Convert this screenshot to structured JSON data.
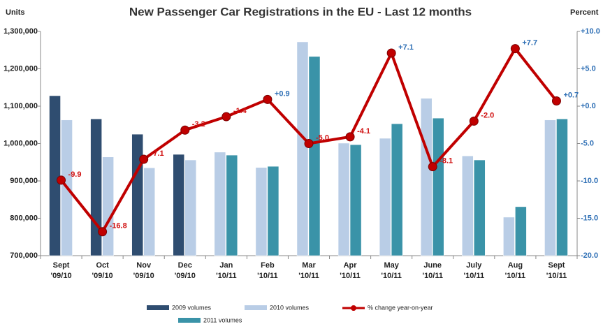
{
  "chart_data": {
    "type": "bar-line",
    "title": "New Passenger Car Registrations in the EU - Last 12 months",
    "y_label": "Units",
    "y2_label": "Percent",
    "categories": [
      "Sept '09/10",
      "Oct '09/10",
      "Nov '09/10",
      "Dec '09/10",
      "Jan '10/11",
      "Feb '10/11",
      "Mar '10/11",
      "Apr '10/11",
      "May '10/11",
      "June '10/11",
      "July '10/11",
      "Aug '10/11",
      "Sept '10/11"
    ],
    "series": [
      {
        "name": "2009 volumes",
        "color": "#2f4d70",
        "values": [
          1128000,
          1066000,
          1025000,
          971000,
          null,
          null,
          null,
          null,
          null,
          null,
          null,
          null,
          null
        ]
      },
      {
        "name": "2010 volumes",
        "color": "#b9cde6",
        "values": [
          1063000,
          964000,
          935000,
          956000,
          977000,
          936000,
          1272000,
          1001000,
          1014000,
          1121000,
          967000,
          803000,
          1063000
        ]
      },
      {
        "name": "2011 volumes",
        "color": "#3a93a8",
        "values": [
          null,
          null,
          null,
          null,
          969000,
          939000,
          1233000,
          997000,
          1053000,
          1068000,
          956000,
          831000,
          1066000
        ]
      },
      {
        "name": "% change year-on-year",
        "color": "#c00000",
        "axis": "y2",
        "type": "line",
        "values": [
          -9.9,
          -16.8,
          -7.1,
          -3.2,
          -1.4,
          0.9,
          -5.0,
          -4.1,
          7.1,
          -8.1,
          -2.0,
          7.7,
          0.7
        ],
        "value_labels": [
          "-9.9",
          "-16.8",
          "-7.1",
          "-3.2",
          "-1.4",
          "+0.9",
          "-5.0",
          "-4.1",
          "+7.1",
          "-8.1",
          "-2.0",
          "+7.7",
          "+0.7"
        ]
      }
    ],
    "ylim": [
      700000,
      1300000
    ],
    "yticks": [
      {
        "value": 700000,
        "label": "700,000"
      },
      {
        "value": 800000,
        "label": "800,000"
      },
      {
        "value": 900000,
        "label": "900,000"
      },
      {
        "value": 1000000,
        "label": "1,000,000"
      },
      {
        "value": 1100000,
        "label": "1,100,000"
      },
      {
        "value": 1200000,
        "label": "1,200,000"
      },
      {
        "value": 1300000,
        "label": "1,300,000"
      }
    ],
    "y2lim": [
      -20,
      10
    ],
    "y2ticks": [
      {
        "value": -20,
        "label": "-20.0"
      },
      {
        "value": -15,
        "label": "-15.0"
      },
      {
        "value": -10,
        "label": "-10.0"
      },
      {
        "value": -5,
        "label": "-5.0"
      },
      {
        "value": 0,
        "label": "+0.0"
      },
      {
        "value": 5,
        "label": "+5.0"
      },
      {
        "value": 10,
        "label": "+10.0"
      }
    ],
    "legend": "bottom"
  }
}
